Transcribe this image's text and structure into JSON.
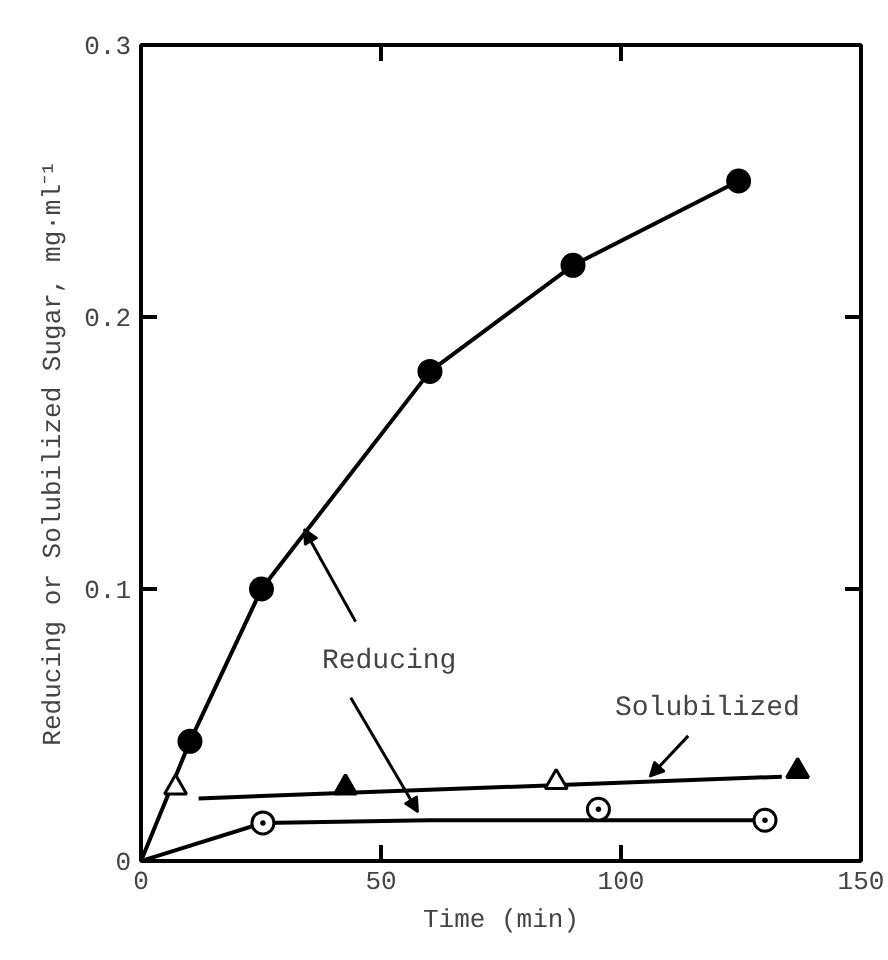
{
  "chart_data": {
    "type": "scatter",
    "xlabel": "Time (min)",
    "ylabel": "Reducing or Solubilized Sugar, mg·ml⁻¹",
    "xlim": [
      0,
      150
    ],
    "ylim": [
      0,
      0.3
    ],
    "xticks": [
      0,
      50,
      100,
      150
    ],
    "yticks": [
      0,
      0.1,
      0.2,
      0.3
    ],
    "grid": false,
    "series": [
      {
        "type": "line",
        "marker": "none",
        "color": "#000000",
        "x": [
          0,
          10.2,
          25.1,
          60.2,
          90,
          124.5
        ],
        "values": [
          0,
          0.044,
          0.1,
          0.18,
          0.219,
          0.25
        ]
      },
      {
        "marker": "circle",
        "color": "#000000",
        "x": [
          10.2,
          25.1,
          60.2,
          90,
          124.5
        ],
        "values": [
          0.044,
          0.1,
          0.18,
          0.219,
          0.25
        ]
      },
      {
        "type": "line",
        "marker": "none",
        "color": "#000000",
        "x": [
          12,
          133.5
        ],
        "values": [
          0.023,
          0.031
        ]
      },
      {
        "marker": "triangle",
        "color": "#000000",
        "colors": [
          "#ffffff",
          "#000000",
          "#ffffff",
          "#000000"
        ],
        "x": [
          7.2,
          42.6,
          86.5,
          136.8
        ],
        "values": [
          0.027,
          0.027,
          0.029,
          0.033
        ]
      },
      {
        "type": "line",
        "marker": "none",
        "color": "#000000",
        "x": [
          0,
          25.4,
          60,
          130
        ],
        "values": [
          0,
          0.014,
          0.015,
          0.015
        ]
      },
      {
        "marker": "circle",
        "color": "#000000",
        "colors": [
          "#ffffff",
          "#ffffff",
          "#ffffff"
        ],
        "x": [
          25.4,
          95.3,
          130
        ],
        "values": [
          0.014,
          0.019,
          0.015
        ]
      }
    ],
    "annotations": [
      {
        "text": "Reducing",
        "x": 34,
        "y": 0.122
      },
      {
        "text": "Solubilized",
        "x": 106,
        "y": 0.031
      }
    ]
  }
}
